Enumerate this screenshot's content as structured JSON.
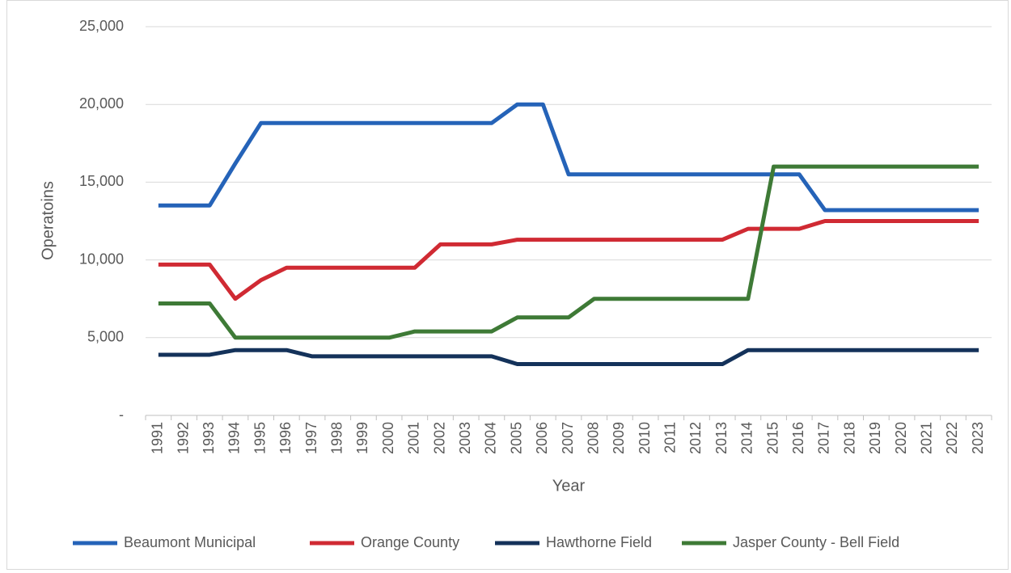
{
  "chart_data": {
    "type": "line",
    "y_label": "Operatoins",
    "x_label": "Year",
    "categories": [
      "1991",
      "1992",
      "1993",
      "1994",
      "1995",
      "1996",
      "1997",
      "1998",
      "1999",
      "2000",
      "2001",
      "2002",
      "2003",
      "2004",
      "2005",
      "2006",
      "2007",
      "2008",
      "2009",
      "2010",
      "2011",
      "2012",
      "2013",
      "2014",
      "2015",
      "2016",
      "2017",
      "2018",
      "2019",
      "2020",
      "2021",
      "2022",
      "2023"
    ],
    "series": [
      {
        "name": "Beaumont Municipal",
        "color": "#2563b8",
        "values": [
          13500,
          13500,
          13500,
          16200,
          18800,
          18800,
          18800,
          18800,
          18800,
          18800,
          18800,
          18800,
          18800,
          18800,
          20000,
          20000,
          15500,
          15500,
          15500,
          15500,
          15500,
          15500,
          15500,
          15500,
          15500,
          15500,
          13200,
          13200,
          13200,
          13200,
          13200,
          13200,
          13200
        ]
      },
      {
        "name": "Orange County",
        "color": "#d02a33",
        "values": [
          9700,
          9700,
          9700,
          7500,
          8700,
          9500,
          9500,
          9500,
          9500,
          9500,
          9500,
          11000,
          11000,
          11000,
          11300,
          11300,
          11300,
          11300,
          11300,
          11300,
          11300,
          11300,
          11300,
          12000,
          12000,
          12000,
          12500,
          12500,
          12500,
          12500,
          12500,
          12500,
          12500
        ]
      },
      {
        "name": "Hawthorne Field",
        "color": "#14325a",
        "values": [
          3900,
          3900,
          3900,
          4200,
          4200,
          4200,
          3800,
          3800,
          3800,
          3800,
          3800,
          3800,
          3800,
          3800,
          3300,
          3300,
          3300,
          3300,
          3300,
          3300,
          3300,
          3300,
          3300,
          4200,
          4200,
          4200,
          4200,
          4200,
          4200,
          4200,
          4200,
          4200,
          4200
        ]
      },
      {
        "name": "Jasper County - Bell Field",
        "color": "#3e7a36",
        "values": [
          7200,
          7200,
          7200,
          5000,
          5000,
          5000,
          5000,
          5000,
          5000,
          5000,
          5400,
          5400,
          5400,
          5400,
          6300,
          6300,
          6300,
          7500,
          7500,
          7500,
          7500,
          7500,
          7500,
          7500,
          16000,
          16000,
          16000,
          16000,
          16000,
          16000,
          16000,
          16000,
          16000
        ]
      }
    ],
    "ylim": [
      0,
      25000
    ],
    "yticks": [
      {
        "value": 0,
        "label": "-"
      },
      {
        "value": 5000,
        "label": "5,000"
      },
      {
        "value": 10000,
        "label": "10,000"
      },
      {
        "value": 15000,
        "label": "15,000"
      },
      {
        "value": 20000,
        "label": "20,000"
      },
      {
        "value": 25000,
        "label": "25,000"
      }
    ],
    "grid": true,
    "legend": "bottom"
  }
}
